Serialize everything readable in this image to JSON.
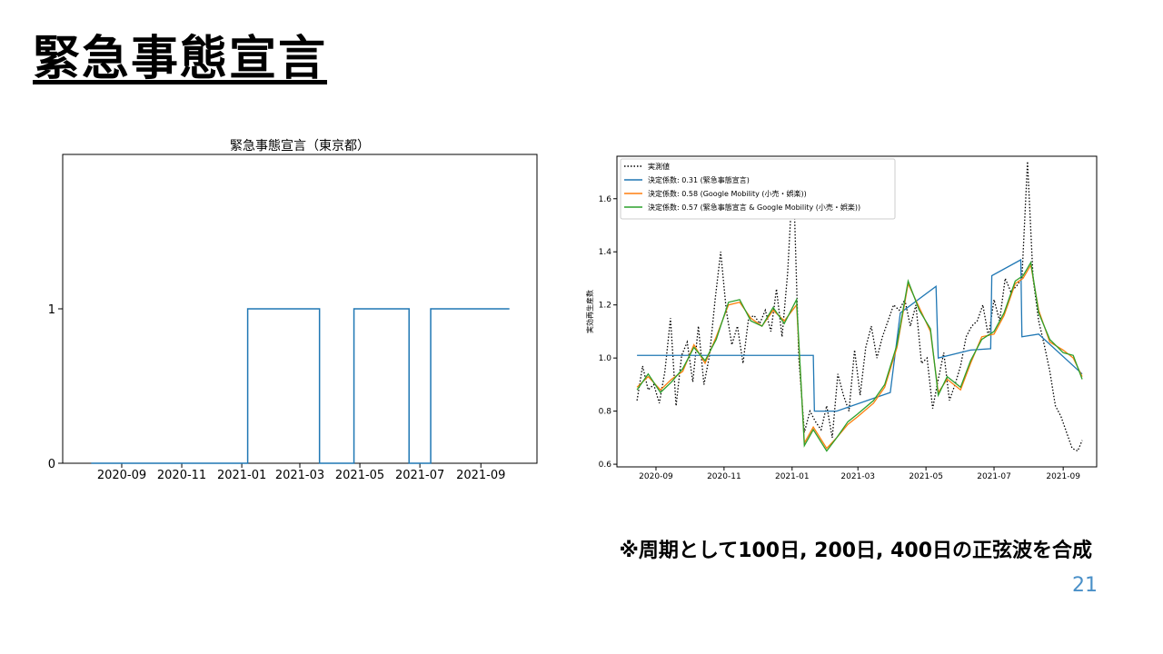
{
  "slide": {
    "title": "緊急事態宣言",
    "footnote": "※周期として100日, 200日, 400日の正弦波を合成",
    "page_number": "21"
  },
  "chart_data": [
    {
      "type": "line",
      "title": "緊急事態宣言（東京都）",
      "xlabel": "",
      "ylabel": "",
      "x_ticks": [
        "2020-09",
        "2020-11",
        "2021-01",
        "2021-03",
        "2021-05",
        "2021-07",
        "2021-09"
      ],
      "y_ticks": [
        "0",
        "1"
      ],
      "ylim": [
        0,
        2
      ],
      "grid": false,
      "series": [
        {
          "color": "#1f77b4",
          "x": [
            "2020-08-01",
            "2021-01-07",
            "2021-03-21",
            "2021-04-25",
            "2021-06-20",
            "2021-07-12",
            "2021-09-30"
          ],
          "values": [
            0,
            1,
            0,
            1,
            0,
            1,
            1
          ],
          "step": true
        }
      ]
    },
    {
      "type": "line",
      "title": "",
      "xlabel": "",
      "ylabel": "実効再生産数",
      "x_ticks": [
        "2020-09",
        "2020-11",
        "2021-01",
        "2021-03",
        "2021-05",
        "2021-07",
        "2021-09"
      ],
      "y_ticks": [
        "0.6",
        "0.8",
        "1.0",
        "1.2",
        "1.4",
        "1.6"
      ],
      "ylim": [
        0.59,
        1.76
      ],
      "grid": false,
      "legend_position": "top-left",
      "series": [
        {
          "name": "実測値",
          "color": "#000000",
          "style": "dotted",
          "x": [
            "2020-08-15",
            "2020-08-20",
            "2020-08-25",
            "2020-08-30",
            "2020-09-04",
            "2020-09-09",
            "2020-09-14",
            "2020-09-19",
            "2020-09-24",
            "2020-09-29",
            "2020-10-04",
            "2020-10-09",
            "2020-10-14",
            "2020-10-19",
            "2020-10-24",
            "2020-10-29",
            "2020-11-03",
            "2020-11-08",
            "2020-11-13",
            "2020-11-18",
            "2020-11-23",
            "2020-11-28",
            "2020-12-03",
            "2020-12-08",
            "2020-12-13",
            "2020-12-18",
            "2020-12-23",
            "2020-12-28",
            "2021-01-02",
            "2021-01-07",
            "2021-01-12",
            "2021-01-17",
            "2021-01-22",
            "2021-01-27",
            "2021-02-01",
            "2021-02-06",
            "2021-02-11",
            "2021-02-16",
            "2021-02-21",
            "2021-02-26",
            "2021-03-03",
            "2021-03-08",
            "2021-03-13",
            "2021-03-18",
            "2021-03-23",
            "2021-03-28",
            "2021-04-02",
            "2021-04-07",
            "2021-04-12",
            "2021-04-17",
            "2021-04-22",
            "2021-04-27",
            "2021-05-02",
            "2021-05-07",
            "2021-05-12",
            "2021-05-17",
            "2021-05-22",
            "2021-05-27",
            "2021-06-01",
            "2021-06-06",
            "2021-06-11",
            "2021-06-16",
            "2021-06-21",
            "2021-06-26",
            "2021-07-01",
            "2021-07-06",
            "2021-07-11",
            "2021-07-16",
            "2021-07-21",
            "2021-07-26",
            "2021-07-31",
            "2021-08-05",
            "2021-08-10",
            "2021-08-15",
            "2021-08-20",
            "2021-08-25",
            "2021-08-30",
            "2021-09-04",
            "2021-09-09",
            "2021-09-14",
            "2021-09-18"
          ],
          "values": [
            0.84,
            0.97,
            0.88,
            0.9,
            0.83,
            0.95,
            1.15,
            0.82,
            1.01,
            1.06,
            0.91,
            1.12,
            0.9,
            1.01,
            1.22,
            1.4,
            1.18,
            1.05,
            1.12,
            0.98,
            1.15,
            1.16,
            1.13,
            1.18,
            1.1,
            1.26,
            1.08,
            1.32,
            1.71,
            1.0,
            0.72,
            0.8,
            0.76,
            0.73,
            0.82,
            0.7,
            0.94,
            0.86,
            0.8,
            1.03,
            0.86,
            1.04,
            1.12,
            1.0,
            1.08,
            1.14,
            1.2,
            1.18,
            1.22,
            1.12,
            1.2,
            0.98,
            1.0,
            0.81,
            0.92,
            1.02,
            0.84,
            0.9,
            0.97,
            1.08,
            1.12,
            1.14,
            1.2,
            1.08,
            1.22,
            1.14,
            1.3,
            1.25,
            1.27,
            1.3,
            1.74,
            1.3,
            1.14,
            1.05,
            0.95,
            0.82,
            0.78,
            0.72,
            0.66,
            0.65,
            0.69
          ]
        },
        {
          "name": "決定係数: 0.31 (緊急事態宣言)",
          "color": "#1f77b4",
          "style": "solid",
          "x": [
            "2020-08-15",
            "2021-01-20",
            "2021-01-21",
            "2021-02-10",
            "2021-03-30",
            "2021-04-08",
            "2021-05-10",
            "2021-05-12",
            "2021-06-10",
            "2021-06-28",
            "2021-06-29",
            "2021-07-25",
            "2021-07-26",
            "2021-08-10",
            "2021-09-18"
          ],
          "values": [
            1.01,
            1.01,
            0.8,
            0.8,
            0.87,
            1.17,
            1.27,
            1.0,
            1.03,
            1.035,
            1.31,
            1.37,
            1.08,
            1.09,
            0.94
          ]
        },
        {
          "name": "決定係数: 0.58 (Google Mobility (小売・娯楽))",
          "color": "#ff7f0e",
          "style": "solid",
          "x": [
            "2020-08-15",
            "2020-08-25",
            "2020-09-05",
            "2020-09-15",
            "2020-09-25",
            "2020-10-05",
            "2020-10-15",
            "2020-10-25",
            "2020-11-05",
            "2020-11-15",
            "2020-11-25",
            "2020-12-05",
            "2020-12-15",
            "2020-12-25",
            "2021-01-05",
            "2021-01-12",
            "2021-01-20",
            "2021-02-01",
            "2021-02-10",
            "2021-02-20",
            "2021-03-01",
            "2021-03-15",
            "2021-03-25",
            "2021-04-05",
            "2021-04-15",
            "2021-04-25",
            "2021-05-05",
            "2021-05-12",
            "2021-05-20",
            "2021-06-01",
            "2021-06-10",
            "2021-06-20",
            "2021-07-01",
            "2021-07-10",
            "2021-07-20",
            "2021-07-27",
            "2021-08-03",
            "2021-08-10",
            "2021-08-20",
            "2021-09-01",
            "2021-09-10",
            "2021-09-18"
          ],
          "values": [
            0.89,
            0.93,
            0.88,
            0.92,
            0.95,
            1.05,
            0.98,
            1.08,
            1.2,
            1.21,
            1.15,
            1.12,
            1.18,
            1.14,
            1.2,
            0.68,
            0.74,
            0.66,
            0.7,
            0.75,
            0.78,
            0.83,
            0.89,
            1.04,
            1.28,
            1.19,
            1.1,
            0.87,
            0.92,
            0.88,
            0.98,
            1.08,
            1.09,
            1.16,
            1.28,
            1.3,
            1.35,
            1.18,
            1.06,
            1.03,
            1.0,
            0.93
          ]
        },
        {
          "name": "決定係数: 0.57 (緊急事態宣言 & Google Mobility (小売・娯楽))",
          "color": "#2ca02c",
          "style": "solid",
          "x": [
            "2020-08-15",
            "2020-08-25",
            "2020-09-05",
            "2020-09-15",
            "2020-09-25",
            "2020-10-05",
            "2020-10-15",
            "2020-10-25",
            "2020-11-05",
            "2020-11-15",
            "2020-11-25",
            "2020-12-05",
            "2020-12-15",
            "2020-12-25",
            "2021-01-05",
            "2021-01-12",
            "2021-01-20",
            "2021-02-01",
            "2021-02-10",
            "2021-02-20",
            "2021-03-01",
            "2021-03-15",
            "2021-03-25",
            "2021-04-05",
            "2021-04-15",
            "2021-04-25",
            "2021-05-05",
            "2021-05-12",
            "2021-05-20",
            "2021-06-01",
            "2021-06-10",
            "2021-06-20",
            "2021-07-01",
            "2021-07-10",
            "2021-07-20",
            "2021-07-27",
            "2021-08-03",
            "2021-08-10",
            "2021-08-20",
            "2021-09-01",
            "2021-09-10",
            "2021-09-18"
          ],
          "values": [
            0.88,
            0.94,
            0.87,
            0.91,
            0.96,
            1.04,
            0.99,
            1.07,
            1.21,
            1.22,
            1.14,
            1.12,
            1.19,
            1.13,
            1.22,
            0.67,
            0.73,
            0.65,
            0.7,
            0.76,
            0.79,
            0.84,
            0.9,
            1.05,
            1.29,
            1.18,
            1.11,
            0.86,
            0.93,
            0.89,
            0.99,
            1.07,
            1.1,
            1.17,
            1.29,
            1.31,
            1.36,
            1.17,
            1.07,
            1.02,
            1.01,
            0.92
          ]
        }
      ]
    }
  ]
}
